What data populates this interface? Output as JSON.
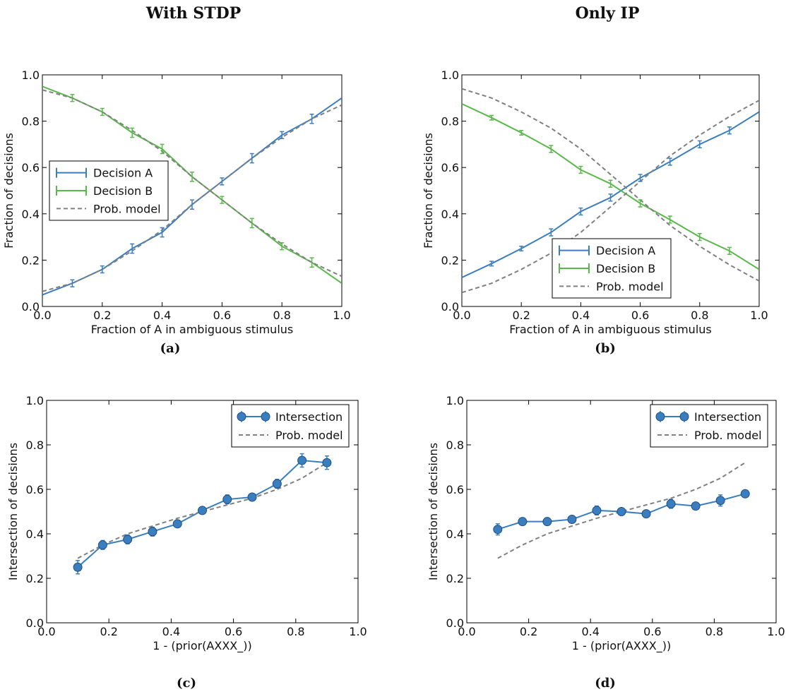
{
  "columns": {
    "left": "With STDP",
    "right": "Only IP"
  },
  "colors": {
    "decision_a": "#3a7ebf",
    "decision_b": "#59b84a",
    "model": "#808080"
  },
  "chart_data": [
    {
      "id": "a",
      "caption": "(a)",
      "type": "line",
      "xlabel": "Fraction of A in ambiguous stimulus",
      "ylabel": "Fraction of decisions",
      "xlim": [
        0,
        1
      ],
      "ylim": [
        0,
        1
      ],
      "xticks": [
        "0.0",
        "0.2",
        "0.4",
        "0.6",
        "0.8",
        "1.0"
      ],
      "yticks": [
        "0.0",
        "0.2",
        "0.4",
        "0.6",
        "0.8",
        "1.0"
      ],
      "legend": {
        "placement": "center-left",
        "entries": [
          "Decision A",
          "Decision B",
          "Prob. model"
        ]
      },
      "series": [
        {
          "name": "Decision A",
          "color": "#3a7ebf",
          "x": [
            0.0,
            0.1,
            0.2,
            0.3,
            0.4,
            0.5,
            0.6,
            0.7,
            0.8,
            0.9,
            1.0
          ],
          "y": [
            0.05,
            0.1,
            0.16,
            0.25,
            0.32,
            0.44,
            0.54,
            0.64,
            0.74,
            0.81,
            0.9
          ],
          "err": [
            0,
            0.015,
            0.015,
            0.02,
            0.02,
            0.02,
            0.015,
            0.02,
            0.015,
            0.02,
            0
          ]
        },
        {
          "name": "Decision B",
          "color": "#59b84a",
          "x": [
            0.0,
            0.1,
            0.2,
            0.3,
            0.4,
            0.5,
            0.6,
            0.7,
            0.8,
            0.9,
            1.0
          ],
          "y": [
            0.95,
            0.9,
            0.84,
            0.75,
            0.68,
            0.56,
            0.46,
            0.36,
            0.26,
            0.19,
            0.1
          ],
          "err": [
            0,
            0.015,
            0.015,
            0.02,
            0.02,
            0.02,
            0.015,
            0.02,
            0.015,
            0.02,
            0
          ]
        },
        {
          "name": "Prob. model",
          "color": "#808080",
          "dashed": true,
          "x": [
            0.0,
            0.1,
            0.2,
            0.3,
            0.4,
            0.5,
            0.6,
            0.7,
            0.8,
            0.9,
            1.0
          ],
          "y": [
            0.065,
            0.1,
            0.16,
            0.24,
            0.33,
            0.44,
            0.54,
            0.64,
            0.73,
            0.81,
            0.87
          ]
        },
        {
          "name": "Prob. model",
          "color": "#808080",
          "dashed": true,
          "x": [
            0.0,
            0.1,
            0.2,
            0.3,
            0.4,
            0.5,
            0.6,
            0.7,
            0.8,
            0.9,
            1.0
          ],
          "y": [
            0.935,
            0.9,
            0.84,
            0.76,
            0.67,
            0.56,
            0.46,
            0.36,
            0.27,
            0.19,
            0.13
          ]
        }
      ]
    },
    {
      "id": "b",
      "caption": "(b)",
      "type": "line",
      "xlabel": "Fraction of A in ambiguous stimulus",
      "ylabel": "Fraction of decisions",
      "xlim": [
        0,
        1
      ],
      "ylim": [
        0,
        1
      ],
      "xticks": [
        "0.0",
        "0.2",
        "0.4",
        "0.6",
        "0.8",
        "1.0"
      ],
      "yticks": [
        "0.0",
        "0.2",
        "0.4",
        "0.6",
        "0.8",
        "1.0"
      ],
      "legend": {
        "placement": "lower-center",
        "entries": [
          "Decision A",
          "Decision B",
          "Prob. model"
        ]
      },
      "series": [
        {
          "name": "Decision A",
          "color": "#3a7ebf",
          "x": [
            0.0,
            0.1,
            0.2,
            0.3,
            0.4,
            0.5,
            0.6,
            0.7,
            0.8,
            0.9,
            1.0
          ],
          "y": [
            0.125,
            0.185,
            0.25,
            0.32,
            0.41,
            0.47,
            0.555,
            0.625,
            0.7,
            0.76,
            0.84
          ],
          "err": [
            0,
            0.01,
            0.01,
            0.015,
            0.015,
            0.015,
            0.015,
            0.015,
            0.015,
            0.015,
            0
          ]
        },
        {
          "name": "Decision B",
          "color": "#59b84a",
          "x": [
            0.0,
            0.1,
            0.2,
            0.3,
            0.4,
            0.5,
            0.6,
            0.7,
            0.8,
            0.9,
            1.0
          ],
          "y": [
            0.875,
            0.815,
            0.75,
            0.68,
            0.59,
            0.53,
            0.445,
            0.375,
            0.3,
            0.24,
            0.16
          ],
          "err": [
            0,
            0.01,
            0.01,
            0.015,
            0.015,
            0.015,
            0.015,
            0.015,
            0.015,
            0.015,
            0
          ]
        },
        {
          "name": "Prob. model",
          "color": "#808080",
          "dashed": true,
          "x": [
            0.0,
            0.1,
            0.2,
            0.3,
            0.4,
            0.5,
            0.6,
            0.7,
            0.8,
            0.9,
            1.0
          ],
          "y": [
            0.06,
            0.1,
            0.16,
            0.23,
            0.32,
            0.43,
            0.54,
            0.65,
            0.74,
            0.82,
            0.89
          ]
        },
        {
          "name": "Prob. model",
          "color": "#808080",
          "dashed": true,
          "x": [
            0.0,
            0.1,
            0.2,
            0.3,
            0.4,
            0.5,
            0.6,
            0.7,
            0.8,
            0.9,
            1.0
          ],
          "y": [
            0.94,
            0.9,
            0.84,
            0.77,
            0.68,
            0.57,
            0.46,
            0.35,
            0.26,
            0.18,
            0.11
          ]
        }
      ]
    },
    {
      "id": "c",
      "caption": "(c)",
      "type": "line",
      "xlabel": "1 - (prior(AXXX_))",
      "ylabel": "Intersection of decisions",
      "xlim": [
        0,
        1
      ],
      "ylim": [
        0,
        1
      ],
      "xticks": [
        "0.0",
        "0.2",
        "0.4",
        "0.6",
        "0.8",
        "1.0"
      ],
      "yticks": [
        "0.0",
        "0.2",
        "0.4",
        "0.6",
        "0.8",
        "1.0"
      ],
      "legend": {
        "placement": "top-right",
        "entries": [
          "Intersection",
          "Prob. model"
        ]
      },
      "series": [
        {
          "name": "Intersection",
          "color": "#3a7ebf",
          "markers": true,
          "x": [
            0.1,
            0.18,
            0.26,
            0.34,
            0.42,
            0.5,
            0.58,
            0.66,
            0.74,
            0.82,
            0.9
          ],
          "y": [
            0.25,
            0.35,
            0.375,
            0.41,
            0.445,
            0.505,
            0.555,
            0.565,
            0.625,
            0.73,
            0.72
          ],
          "err": [
            0.03,
            0.02,
            0.02,
            0.02,
            0.015,
            0.015,
            0.02,
            0.015,
            0.02,
            0.03,
            0.03
          ]
        },
        {
          "name": "Prob. model",
          "color": "#808080",
          "dashed": true,
          "x": [
            0.1,
            0.18,
            0.26,
            0.34,
            0.42,
            0.5,
            0.58,
            0.66,
            0.74,
            0.82,
            0.9
          ],
          "y": [
            0.29,
            0.35,
            0.4,
            0.435,
            0.47,
            0.5,
            0.53,
            0.56,
            0.6,
            0.65,
            0.72
          ]
        }
      ]
    },
    {
      "id": "d",
      "caption": "(d)",
      "type": "line",
      "xlabel": "1 - (prior(AXXX_))",
      "ylabel": "Intersection of decisions",
      "xlim": [
        0,
        1
      ],
      "ylim": [
        0,
        1
      ],
      "xticks": [
        "0.0",
        "0.2",
        "0.4",
        "0.6",
        "0.8",
        "1.0"
      ],
      "yticks": [
        "0.0",
        "0.2",
        "0.4",
        "0.6",
        "0.8",
        "1.0"
      ],
      "legend": {
        "placement": "top-right",
        "entries": [
          "Intersection",
          "Prob. model"
        ]
      },
      "series": [
        {
          "name": "Intersection",
          "color": "#3a7ebf",
          "markers": true,
          "x": [
            0.1,
            0.18,
            0.26,
            0.34,
            0.42,
            0.5,
            0.58,
            0.66,
            0.74,
            0.82,
            0.9
          ],
          "y": [
            0.42,
            0.455,
            0.455,
            0.465,
            0.505,
            0.5,
            0.49,
            0.535,
            0.525,
            0.55,
            0.58
          ],
          "err": [
            0.025,
            0.015,
            0.015,
            0.015,
            0.02,
            0.015,
            0.015,
            0.02,
            0.015,
            0.025,
            0.015
          ]
        },
        {
          "name": "Prob. model",
          "color": "#808080",
          "dashed": true,
          "x": [
            0.1,
            0.18,
            0.26,
            0.34,
            0.42,
            0.5,
            0.58,
            0.66,
            0.74,
            0.82,
            0.9
          ],
          "y": [
            0.29,
            0.35,
            0.4,
            0.435,
            0.47,
            0.5,
            0.53,
            0.56,
            0.6,
            0.65,
            0.72
          ]
        }
      ]
    }
  ]
}
